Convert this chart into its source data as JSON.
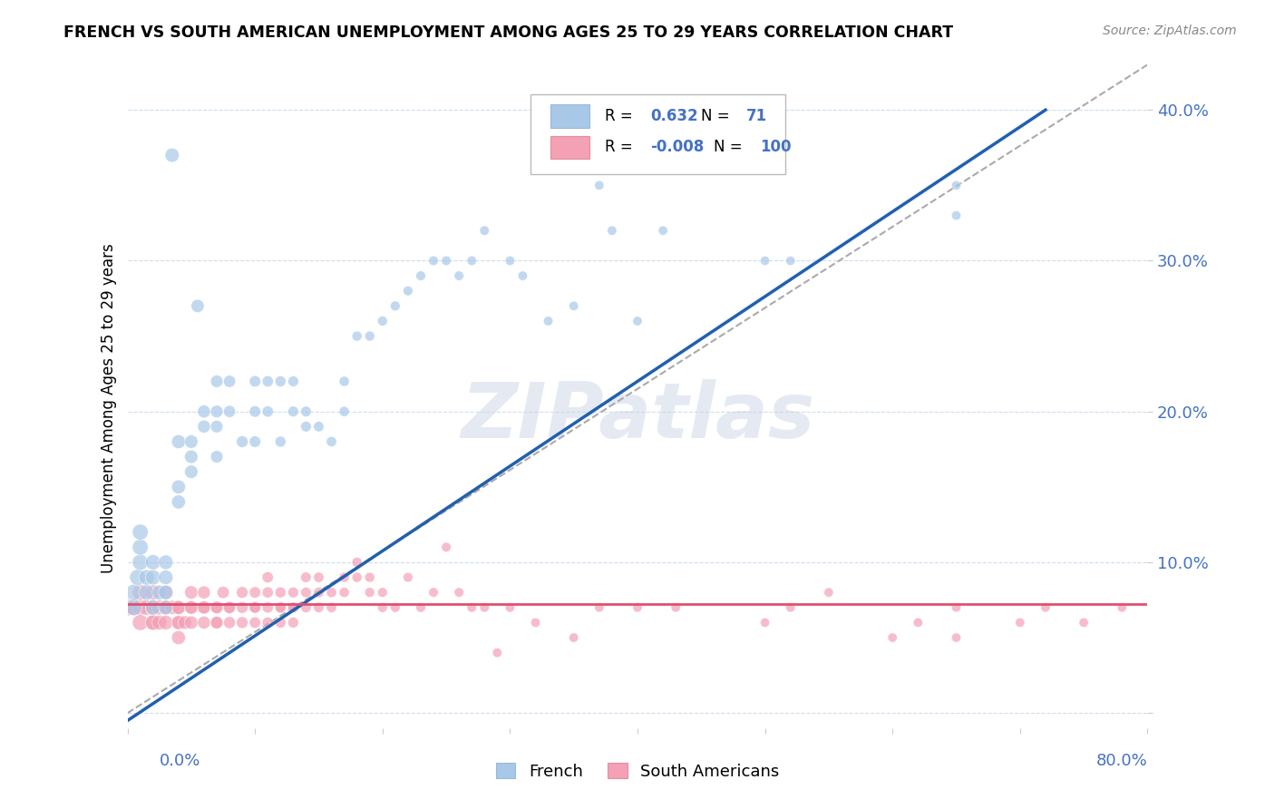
{
  "title": "FRENCH VS SOUTH AMERICAN UNEMPLOYMENT AMONG AGES 25 TO 29 YEARS CORRELATION CHART",
  "source": "Source: ZipAtlas.com",
  "ylabel": "Unemployment Among Ages 25 to 29 years",
  "french_R": "0.632",
  "french_N": "71",
  "sa_R": "-0.008",
  "sa_N": "100",
  "french_color": "#a8c8e8",
  "sa_color": "#f4a0b5",
  "french_line_color": "#2060b0",
  "sa_line_color": "#e05070",
  "ref_line_color": "#aaaaaa",
  "legend_color": "#4472c4",
  "xlim": [
    0.0,
    0.8
  ],
  "ylim": [
    -0.01,
    0.43
  ],
  "french_scatter_x": [
    0.005,
    0.005,
    0.008,
    0.01,
    0.01,
    0.01,
    0.015,
    0.015,
    0.02,
    0.02,
    0.02,
    0.025,
    0.03,
    0.03,
    0.03,
    0.03,
    0.035,
    0.04,
    0.04,
    0.04,
    0.05,
    0.05,
    0.05,
    0.055,
    0.06,
    0.06,
    0.07,
    0.07,
    0.07,
    0.07,
    0.08,
    0.08,
    0.09,
    0.1,
    0.1,
    0.1,
    0.11,
    0.11,
    0.12,
    0.12,
    0.13,
    0.13,
    0.14,
    0.14,
    0.15,
    0.16,
    0.17,
    0.17,
    0.18,
    0.19,
    0.2,
    0.21,
    0.22,
    0.23,
    0.24,
    0.25,
    0.26,
    0.27,
    0.28,
    0.3,
    0.31,
    0.33,
    0.35,
    0.37,
    0.38,
    0.4,
    0.42,
    0.5,
    0.52,
    0.65,
    0.65
  ],
  "french_scatter_y": [
    0.07,
    0.08,
    0.09,
    0.1,
    0.11,
    0.12,
    0.08,
    0.09,
    0.07,
    0.09,
    0.1,
    0.08,
    0.07,
    0.08,
    0.09,
    0.1,
    0.37,
    0.14,
    0.15,
    0.18,
    0.16,
    0.17,
    0.18,
    0.27,
    0.19,
    0.2,
    0.17,
    0.19,
    0.2,
    0.22,
    0.2,
    0.22,
    0.18,
    0.18,
    0.2,
    0.22,
    0.2,
    0.22,
    0.18,
    0.22,
    0.2,
    0.22,
    0.19,
    0.2,
    0.19,
    0.18,
    0.2,
    0.22,
    0.25,
    0.25,
    0.26,
    0.27,
    0.28,
    0.29,
    0.3,
    0.3,
    0.29,
    0.3,
    0.32,
    0.3,
    0.29,
    0.26,
    0.27,
    0.35,
    0.32,
    0.26,
    0.32,
    0.3,
    0.3,
    0.35,
    0.33
  ],
  "sa_scatter_x": [
    0.0,
    0.005,
    0.01,
    0.01,
    0.01,
    0.015,
    0.02,
    0.02,
    0.02,
    0.02,
    0.025,
    0.025,
    0.03,
    0.03,
    0.03,
    0.03,
    0.035,
    0.04,
    0.04,
    0.04,
    0.04,
    0.04,
    0.045,
    0.05,
    0.05,
    0.05,
    0.05,
    0.06,
    0.06,
    0.06,
    0.06,
    0.07,
    0.07,
    0.07,
    0.07,
    0.075,
    0.08,
    0.08,
    0.08,
    0.09,
    0.09,
    0.09,
    0.1,
    0.1,
    0.1,
    0.1,
    0.11,
    0.11,
    0.11,
    0.11,
    0.12,
    0.12,
    0.12,
    0.12,
    0.13,
    0.13,
    0.13,
    0.13,
    0.14,
    0.14,
    0.14,
    0.15,
    0.15,
    0.15,
    0.16,
    0.16,
    0.17,
    0.17,
    0.18,
    0.18,
    0.19,
    0.19,
    0.2,
    0.2,
    0.21,
    0.22,
    0.23,
    0.24,
    0.25,
    0.26,
    0.27,
    0.28,
    0.29,
    0.3,
    0.32,
    0.35,
    0.37,
    0.4,
    0.43,
    0.5,
    0.52,
    0.55,
    0.6,
    0.62,
    0.65,
    0.65,
    0.7,
    0.72,
    0.75,
    0.78
  ],
  "sa_scatter_y": [
    0.07,
    0.07,
    0.07,
    0.06,
    0.08,
    0.07,
    0.06,
    0.07,
    0.08,
    0.06,
    0.07,
    0.06,
    0.07,
    0.06,
    0.07,
    0.08,
    0.07,
    0.06,
    0.07,
    0.06,
    0.05,
    0.07,
    0.06,
    0.07,
    0.06,
    0.07,
    0.08,
    0.07,
    0.06,
    0.07,
    0.08,
    0.06,
    0.07,
    0.06,
    0.07,
    0.08,
    0.07,
    0.06,
    0.07,
    0.06,
    0.07,
    0.08,
    0.07,
    0.08,
    0.06,
    0.07,
    0.06,
    0.07,
    0.08,
    0.09,
    0.07,
    0.08,
    0.06,
    0.07,
    0.07,
    0.08,
    0.06,
    0.07,
    0.07,
    0.09,
    0.08,
    0.07,
    0.08,
    0.09,
    0.08,
    0.07,
    0.09,
    0.08,
    0.1,
    0.09,
    0.09,
    0.08,
    0.08,
    0.07,
    0.07,
    0.09,
    0.07,
    0.08,
    0.11,
    0.08,
    0.07,
    0.07,
    0.04,
    0.07,
    0.06,
    0.05,
    0.07,
    0.07,
    0.07,
    0.06,
    0.07,
    0.08,
    0.05,
    0.06,
    0.07,
    0.05,
    0.06,
    0.07,
    0.06,
    0.07
  ],
  "french_line_x0": 0.0,
  "french_line_y0": -0.005,
  "french_line_x1": 0.72,
  "french_line_y1": 0.4,
  "sa_line_x0": 0.0,
  "sa_line_y0": 0.072,
  "sa_line_x1": 0.8,
  "sa_line_y1": 0.072,
  "ref_line_x0": 0.0,
  "ref_line_y0": 0.0,
  "ref_line_x1": 0.8,
  "ref_line_y1": 0.43
}
